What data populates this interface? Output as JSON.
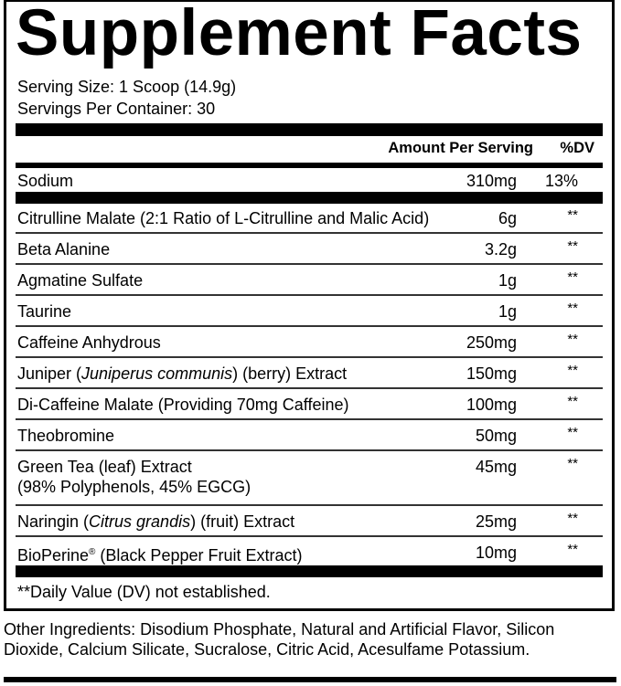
{
  "title": "Supplement Facts",
  "serving_size": "Serving Size: 1 Scoop (14.9g)",
  "servings_per_container": "Servings Per Container: 30",
  "header": {
    "amount": "Amount Per Serving",
    "dv": "%DV"
  },
  "sodium": {
    "name": "Sodium",
    "amount": "310mg",
    "dv": "13%"
  },
  "ingredients": [
    {
      "name": "Citrulline Malate (2:1 Ratio of L-Citrulline and Malic Acid)",
      "amount": "6g",
      "dv": "**"
    },
    {
      "name": "Beta Alanine",
      "amount": "3.2g",
      "dv": "**"
    },
    {
      "name": "Agmatine Sulfate",
      "amount": "1g",
      "dv": "**"
    },
    {
      "name": "Taurine",
      "amount": "1g",
      "dv": "**"
    },
    {
      "name": "Caffeine Anhydrous",
      "amount": "250mg",
      "dv": "**"
    },
    {
      "name": "Juniper (",
      "italic": "Juniperus communis",
      "post": ") (berry) Extract",
      "amount": "150mg",
      "dv": "**"
    },
    {
      "name": "Di-Caffeine Malate (Providing 70mg Caffeine)",
      "amount": "100mg",
      "dv": "**"
    },
    {
      "name": "Theobromine",
      "amount": "50mg",
      "dv": "**"
    },
    {
      "name": "Green Tea (leaf) Extract",
      "line2": "(98% Polyphenols, 45% EGCG)",
      "amount": "45mg",
      "dv": "**"
    },
    {
      "name": "Naringin (",
      "italic": "Citrus grandis",
      "post": ") (fruit) Extract",
      "amount": "25mg",
      "dv": "**"
    },
    {
      "name": "BioPerine",
      "reg": "®",
      "post": " (Black Pepper Fruit Extract)",
      "amount": "10mg",
      "dv": "**"
    }
  ],
  "footnote": "**Daily Value (DV) not established.",
  "other_ingredients": "Other Ingredients: Disodium Phosphate, Natural and Artificial Flavor, Silicon Dioxide, Calcium Silicate, Sucralose, Citric Acid, Acesulfame Potassium."
}
